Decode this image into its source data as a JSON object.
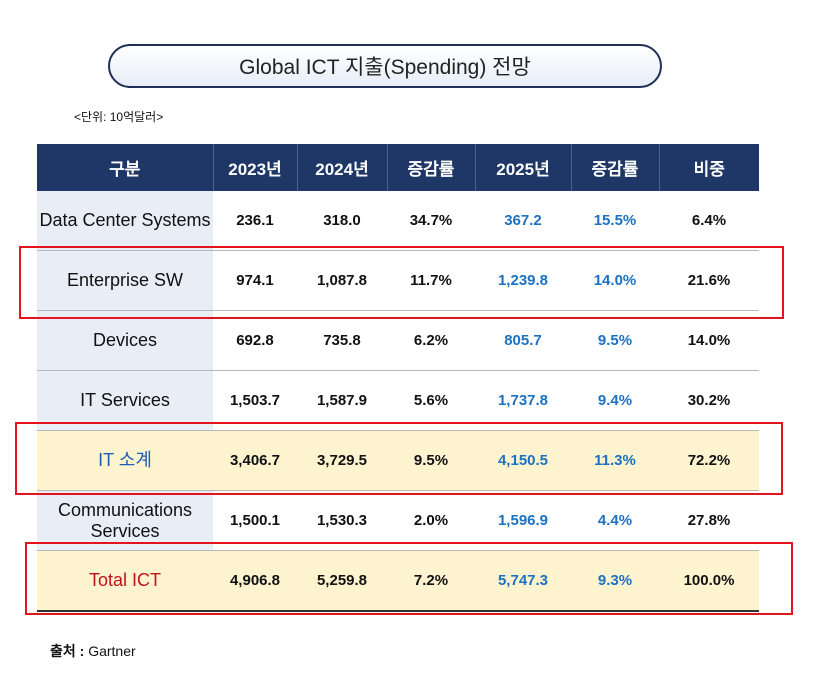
{
  "title": "Global ICT 지출(Spending) 전망",
  "unit_note": "<단위: 10억달러>",
  "headers": [
    "구분",
    "2023년",
    "2024년",
    "증감률",
    "2025년",
    "증감률",
    "비중"
  ],
  "rows": [
    {
      "label": "Data Center Systems",
      "v2023": "236.1",
      "v2024": "318.0",
      "g2024": "34.7%",
      "v2025": "367.2",
      "g2025": "15.5%",
      "share": "6.4%"
    },
    {
      "label": "Enterprise SW",
      "v2023": "974.1",
      "v2024": "1,087.8",
      "g2024": "11.7%",
      "v2025": "1,239.8",
      "g2025": "14.0%",
      "share": "21.6%"
    },
    {
      "label": "Devices",
      "v2023": "692.8",
      "v2024": "735.8",
      "g2024": "6.2%",
      "v2025": "805.7",
      "g2025": "9.5%",
      "share": "14.0%"
    },
    {
      "label": "IT Services",
      "v2023": "1,503.7",
      "v2024": "1,587.9",
      "g2024": "5.6%",
      "v2025": "1,737.8",
      "g2025": "9.4%",
      "share": "30.2%"
    },
    {
      "label": "IT 소계",
      "v2023": "3,406.7",
      "v2024": "3,729.5",
      "g2024": "9.5%",
      "v2025": "4,150.5",
      "g2025": "11.3%",
      "share": "72.2%"
    },
    {
      "label": "Communications Services",
      "v2023": "1,500.1",
      "v2024": "1,530.3",
      "g2024": "2.0%",
      "v2025": "1,596.9",
      "g2025": "4.4%",
      "share": "27.8%"
    },
    {
      "label": "Total ICT",
      "v2023": "4,906.8",
      "v2024": "5,259.8",
      "g2024": "7.2%",
      "v2025": "5,747.3",
      "g2025": "9.3%",
      "share": "100.0%"
    }
  ],
  "source_label": "출처 :",
  "source_value": "Gartner",
  "colors": {
    "header_bg": "#1f3766",
    "highlight_border": "#e2141d",
    "value_blue": "#1c71c2",
    "subtotal_bg": "#fdf3cf",
    "total_label": "#c0141c"
  }
}
